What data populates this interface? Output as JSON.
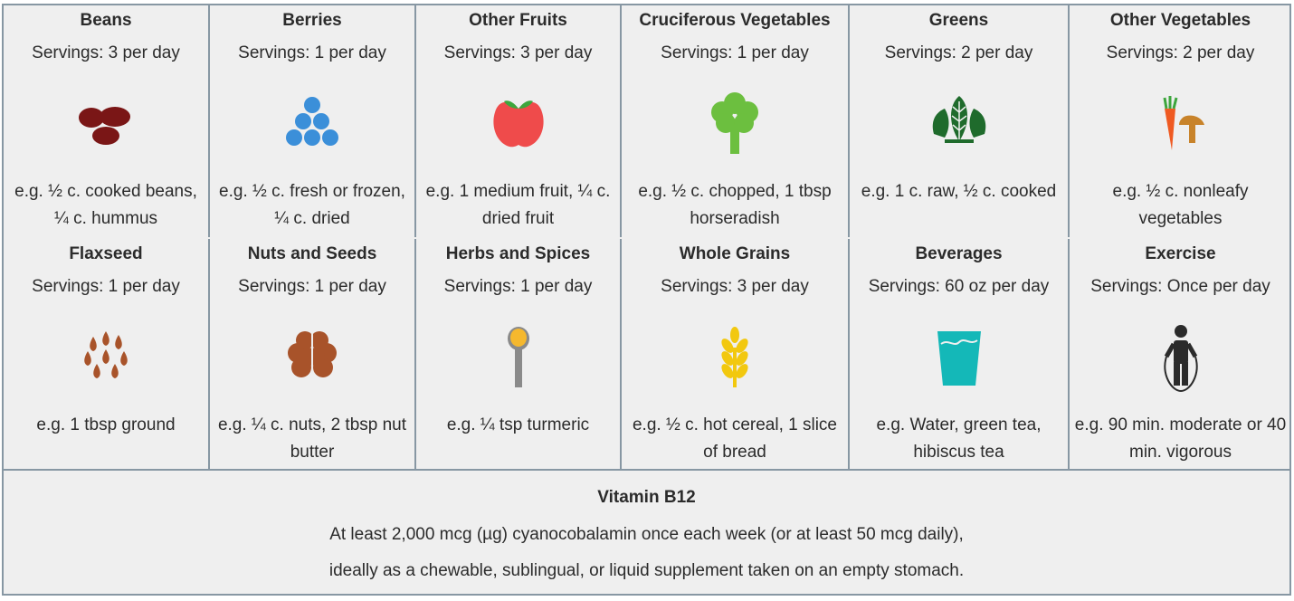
{
  "cards": [
    {
      "title": "Beans",
      "servings": "Servings: 3 per day",
      "example": "e.g. ½ c. cooked beans, ¼ c. hummus",
      "icon": "beans-icon"
    },
    {
      "title": "Berries",
      "servings": "Servings: 1 per day",
      "example": "e.g. ½ c. fresh or frozen, ¼ c. dried",
      "icon": "berries-icon"
    },
    {
      "title": "Other Fruits",
      "servings": "Servings: 3 per day",
      "example": "e.g. 1 medium fruit, ¼ c. dried fruit",
      "icon": "apple-icon"
    },
    {
      "title": "Cruciferous Vegetables",
      "servings": "Servings: 1 per day",
      "example": "e.g. ½ c. chopped, 1 tbsp horseradish",
      "icon": "broccoli-icon"
    },
    {
      "title": "Greens",
      "servings": "Servings: 2 per day",
      "example": "e.g. 1 c. raw, ½ c. cooked",
      "icon": "leafy-greens-icon"
    },
    {
      "title": "Other Vegetables",
      "servings": "Servings: 2 per day",
      "example": "e.g. ½ c. nonleafy vegetables",
      "icon": "carrot-mushroom-icon"
    },
    {
      "title": "Flaxseed",
      "servings": "Servings: 1 per day",
      "example": "e.g. 1 tbsp ground",
      "icon": "flaxseed-icon"
    },
    {
      "title": "Nuts and Seeds",
      "servings": "Servings: 1 per day",
      "example": "e.g. ¼ c. nuts, 2 tbsp nut butter",
      "icon": "walnut-icon"
    },
    {
      "title": "Herbs and Spices",
      "servings": "Servings: 1 per day",
      "example": "e.g. ¼ tsp turmeric",
      "icon": "spice-spoon-icon"
    },
    {
      "title": "Whole Grains",
      "servings": "Servings: 3 per day",
      "example": "e.g. ½ c. hot cereal, 1 slice of bread",
      "icon": "wheat-icon"
    },
    {
      "title": "Beverages",
      "servings": "Servings: 60 oz per day",
      "example": "e.g. Water, green tea, hibiscus tea",
      "icon": "water-glass-icon"
    },
    {
      "title": "Exercise",
      "servings": "Servings: Once per day",
      "example": "e.g. 90 min. moderate or 40 min. vigorous",
      "icon": "jump-rope-icon"
    }
  ],
  "vitamin": {
    "title": "Vitamin B12",
    "line1": "At least 2,000 mcg (µg) cyanocobalamin once each week (or at least 50 mcg daily),",
    "line2": "ideally as a chewable, sublingual, or liquid supplement taken on an empty stomach."
  },
  "colors": {
    "border": "#8797a3",
    "background": "#efefef",
    "text": "#2b2b2b"
  }
}
